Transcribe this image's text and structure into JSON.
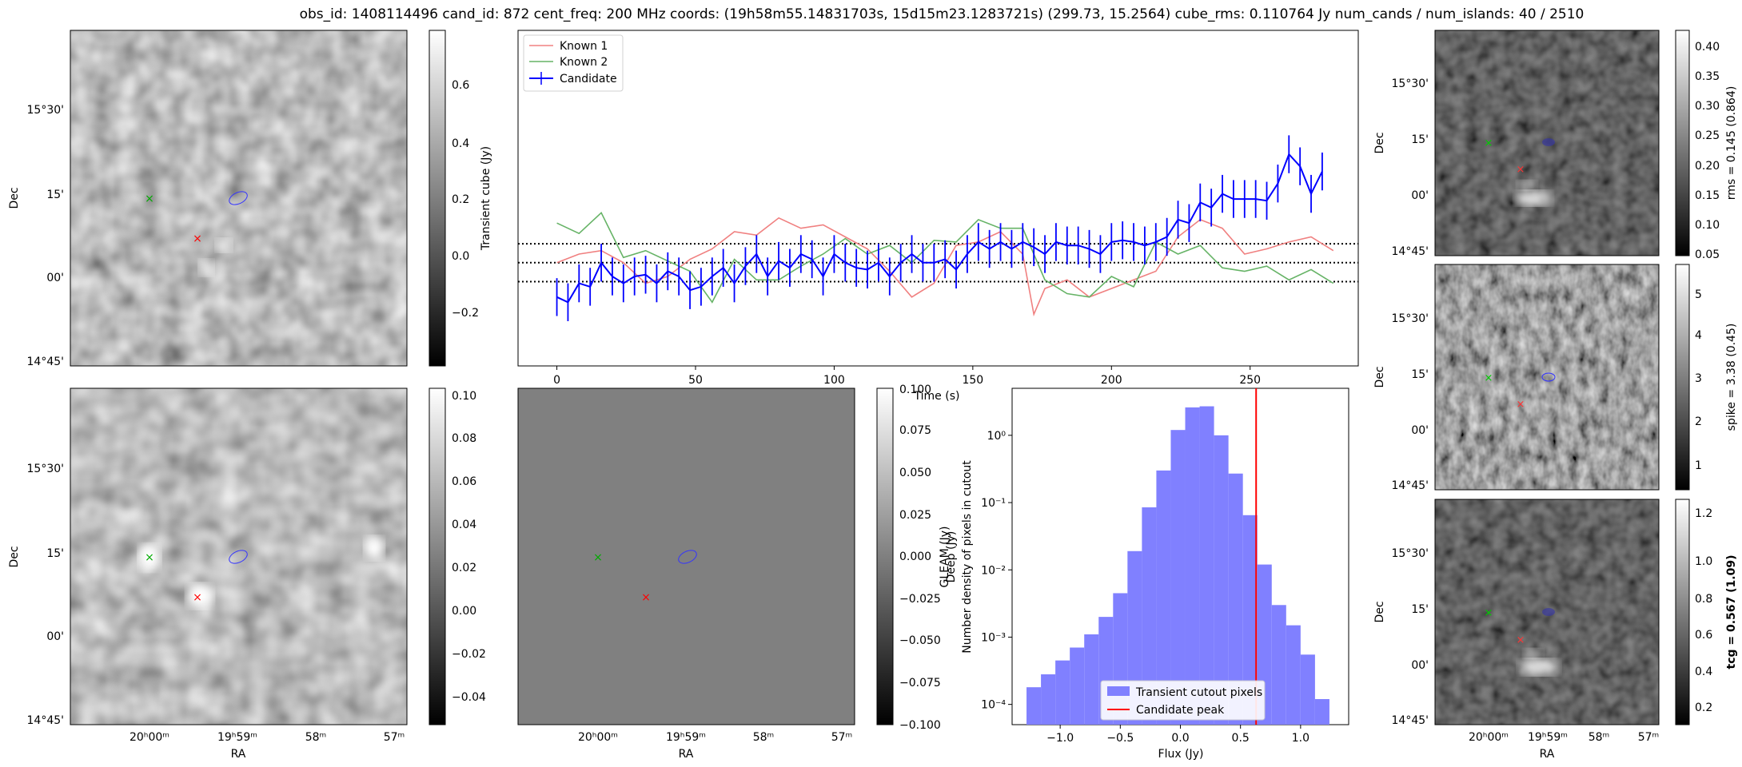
{
  "title": "obs_id: 1408114496 cand_id: 872 cent_freq: 200 MHz coords: (19h58m55.14831703s, 15d15m23.1283721s) (299.73, 15.2564) cube_rms: 0.110764 Jy num_cands / num_islands: 40 / 2510",
  "image_axes": {
    "dec_label": "Dec",
    "ra_label": "RA",
    "dec_ticks": [
      "15°30'",
      "15'",
      "00'",
      "14°45'"
    ],
    "ra_ticks": [
      "20ʰ00ᵐ",
      "19ʰ59ᵐ",
      "58ᵐ",
      "57ᵐ"
    ]
  },
  "colors": {
    "known1": "#f08080",
    "known2": "#66b366",
    "candidate": "#0000ff",
    "hist": "#8080ff",
    "peak": "#ff0000",
    "marker_red": "#ff0000",
    "marker_green": "#00aa00"
  },
  "chart_data": [
    {
      "type": "image",
      "panel": "transient-cube",
      "colorbar_label": "Transient cube (Jy)",
      "colorbar_ticks": [
        "0.6",
        "0.4",
        "0.2",
        "0.0",
        "−0.2"
      ],
      "colorbar_range": [
        -0.37,
        0.78
      ]
    },
    {
      "type": "image",
      "panel": "deep",
      "colorbar_label": "Deep (Jy)",
      "colorbar_ticks": [
        "0.10",
        "0.08",
        "0.06",
        "0.04",
        "0.02",
        "0.00",
        "−0.02",
        "−0.04"
      ],
      "colorbar_range": [
        -0.052,
        0.104
      ]
    },
    {
      "type": "image",
      "panel": "gleam",
      "colorbar_label": "GLEAM (Jy)",
      "colorbar_ticks": [
        "0.100",
        "0.075",
        "0.050",
        "0.025",
        "0.000",
        "−0.025",
        "−0.050",
        "−0.075",
        "−0.100"
      ],
      "colorbar_range": [
        -0.1,
        0.1
      ]
    },
    {
      "type": "line",
      "panel": "lightcurve",
      "xlabel": "Time (s)",
      "ylabel": "",
      "xlim": [
        -14,
        289
      ],
      "ylim": [
        -0.6,
        1.35
      ],
      "x_ticks": [
        "0",
        "50",
        "100",
        "150",
        "200",
        "250"
      ],
      "hlines": [
        0.11,
        0.0,
        -0.11
      ],
      "series": [
        {
          "name": "Known 1",
          "x": [
            0,
            8,
            16,
            24,
            32,
            40,
            48,
            56,
            64,
            72,
            80,
            88,
            96,
            104,
            112,
            120,
            128,
            136,
            144,
            152,
            160,
            168,
            172,
            176,
            184,
            192,
            200,
            208,
            216,
            224,
            232,
            240,
            248,
            256,
            264,
            272,
            280
          ],
          "values": [
            0.0,
            0.05,
            0.07,
            0.0,
            -0.12,
            -0.08,
            0.02,
            0.08,
            0.18,
            0.16,
            0.26,
            0.2,
            0.22,
            0.15,
            0.08,
            -0.05,
            -0.2,
            -0.12,
            0.1,
            0.12,
            0.18,
            0.05,
            -0.3,
            -0.15,
            -0.1,
            -0.2,
            -0.15,
            -0.1,
            -0.05,
            0.15,
            0.25,
            0.2,
            0.05,
            0.08,
            0.12,
            0.15,
            0.07
          ]
        },
        {
          "name": "Known 2",
          "x": [
            0,
            8,
            16,
            24,
            32,
            40,
            48,
            56,
            64,
            72,
            80,
            88,
            96,
            104,
            112,
            120,
            128,
            136,
            144,
            152,
            160,
            168,
            176,
            184,
            192,
            200,
            208,
            216,
            224,
            232,
            240,
            248,
            256,
            264,
            272,
            280
          ],
          "values": [
            0.23,
            0.17,
            0.29,
            0.03,
            0.07,
            0.01,
            -0.05,
            -0.23,
            0.02,
            -0.1,
            -0.1,
            -0.02,
            0.05,
            0.14,
            0.05,
            0.1,
            0.0,
            0.13,
            0.12,
            0.25,
            0.2,
            0.2,
            -0.1,
            -0.18,
            -0.2,
            -0.08,
            -0.14,
            0.12,
            0.05,
            0.1,
            -0.03,
            -0.05,
            -0.02,
            -0.1,
            -0.04,
            -0.12
          ]
        },
        {
          "name": "Candidate",
          "x": [
            0,
            4,
            8,
            12,
            16,
            20,
            24,
            28,
            32,
            36,
            40,
            44,
            48,
            52,
            56,
            60,
            64,
            68,
            72,
            76,
            80,
            84,
            88,
            92,
            96,
            100,
            104,
            108,
            112,
            116,
            120,
            124,
            128,
            132,
            136,
            140,
            144,
            148,
            152,
            156,
            160,
            164,
            168,
            172,
            176,
            180,
            184,
            188,
            192,
            196,
            200,
            204,
            208,
            212,
            216,
            220,
            224,
            228,
            232,
            236,
            240,
            244,
            248,
            252,
            256,
            260,
            264,
            268,
            272,
            276
          ],
          "values": [
            -0.2,
            -0.23,
            -0.12,
            -0.14,
            0.0,
            -0.08,
            -0.12,
            -0.08,
            -0.07,
            -0.12,
            -0.05,
            -0.08,
            -0.16,
            -0.14,
            -0.08,
            -0.03,
            -0.12,
            -0.02,
            0.05,
            -0.08,
            0.01,
            -0.03,
            0.05,
            0.02,
            -0.08,
            0.05,
            0.0,
            -0.03,
            -0.04,
            0.0,
            -0.08,
            0.0,
            0.05,
            0.0,
            0.0,
            0.02,
            -0.04,
            0.05,
            0.12,
            0.08,
            0.12,
            0.08,
            0.12,
            0.09,
            0.05,
            0.12,
            0.1,
            0.1,
            0.08,
            0.05,
            0.12,
            0.13,
            0.12,
            0.1,
            0.12,
            0.15,
            0.25,
            0.23,
            0.35,
            0.32,
            0.4,
            0.37,
            0.37,
            0.37,
            0.36,
            0.46,
            0.63,
            0.56,
            0.4,
            0.53
          ],
          "error": 0.11
        }
      ]
    },
    {
      "type": "bar",
      "panel": "histogram",
      "xlabel": "Flux (Jy)",
      "ylabel": "Number density of pixels in cutout",
      "yscale": "log",
      "xlim": [
        -1.4,
        1.4
      ],
      "ylim": [
        5e-05,
        5
      ],
      "x_ticks": [
        "−1.0",
        "−0.5",
        "0.0",
        "0.5",
        "1.0"
      ],
      "y_ticks": [
        "10⁰",
        "10⁻¹",
        "10⁻²",
        "10⁻³",
        "10⁻⁴"
      ],
      "bin_edges": [
        -1.28,
        -1.16,
        -1.04,
        -0.92,
        -0.8,
        -0.68,
        -0.56,
        -0.44,
        -0.32,
        -0.2,
        -0.08,
        0.04,
        0.16,
        0.28,
        0.4,
        0.52,
        0.64,
        0.76,
        0.88,
        1.0,
        1.12,
        1.24
      ],
      "values": [
        0.00018,
        0.00028,
        0.00045,
        0.0007,
        0.0011,
        0.002,
        0.0045,
        0.019,
        0.085,
        0.3,
        1.2,
        2.6,
        2.7,
        1.0,
        0.27,
        0.065,
        0.012,
        0.003,
        0.0015,
        0.00055,
        0.00012
      ],
      "peak": 0.63,
      "legend": [
        "Transient cutout pixels",
        "Candidate peak"
      ]
    },
    {
      "type": "image",
      "panel": "rms",
      "colorbar_label": "rms = 0.145 (0.864)",
      "colorbar_ticks": [
        "0.40",
        "0.35",
        "0.30",
        "0.25",
        "0.20",
        "0.15",
        "0.10",
        "0.05"
      ],
      "colorbar_range": [
        0.05,
        0.43
      ]
    },
    {
      "type": "image",
      "panel": "spike",
      "colorbar_label": "spike = 3.38 (0.45)",
      "colorbar_ticks": [
        "5",
        "4",
        "3",
        "2",
        "1"
      ],
      "colorbar_range": [
        0.4,
        5.6
      ]
    },
    {
      "type": "image",
      "panel": "tcg",
      "colorbar_label": "tcg = 0.567 (1.09)",
      "colorbar_ticks": [
        "1.2",
        "1.0",
        "0.8",
        "0.6",
        "0.4",
        "0.2"
      ],
      "colorbar_range": [
        0.08,
        1.32
      ]
    }
  ]
}
